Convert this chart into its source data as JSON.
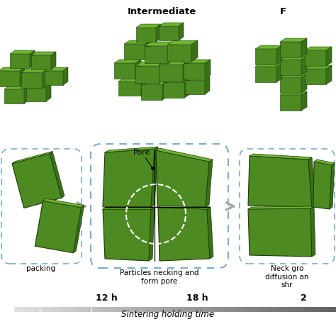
{
  "bg_color": "#ffffff",
  "green_front": "#4d8a22",
  "green_top": "#6db52e",
  "green_dark": "#2d5c10",
  "green_side": "#3a7018",
  "title_intermediate": "Intermediate",
  "title_final": "F",
  "label_pore": "Pore",
  "label_box1": "packing",
  "label_box2": "Particles necking and\nform pore",
  "label_box3": "Neck gro\ndiffusion an\nshr",
  "time1": "12 h",
  "time2": "18 h",
  "time3": "2",
  "bottom_label": "Sintering holding time",
  "dashed_color": "#7aaec8",
  "arrow_color": "#aaaaaa"
}
